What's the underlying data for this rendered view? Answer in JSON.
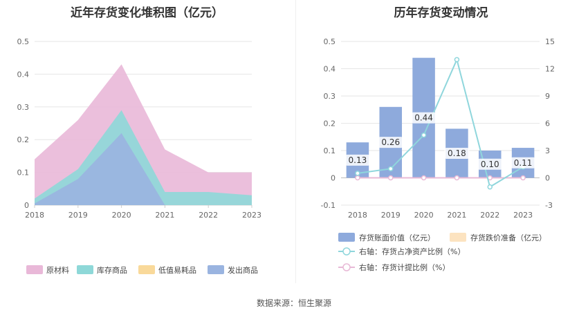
{
  "left_chart": {
    "title": "近年存货变化堆积图（亿元）",
    "chart_data": {
      "type": "area",
      "x": [
        "2018",
        "2019",
        "2020",
        "2021",
        "2022",
        "2023"
      ],
      "ylim": [
        0,
        0.5
      ],
      "yticks": [
        "0",
        "0.1",
        "0.2",
        "0.3",
        "0.4",
        "0.5"
      ],
      "series": [
        {
          "name": "原材料",
          "values": [
            0.14,
            0.26,
            0.43,
            0.17,
            0.1,
            0.1
          ],
          "color": "#E9B8D8"
        },
        {
          "name": "库存商品",
          "values": [
            0.02,
            0.11,
            0.29,
            0.04,
            0.04,
            0.03
          ],
          "color": "#8ED8D8"
        },
        {
          "name": "低值易耗品",
          "values": [
            0,
            0,
            0,
            0,
            0,
            0
          ],
          "color": "#F9D99A"
        },
        {
          "name": "发出商品",
          "values": [
            0.005,
            0.08,
            0.22,
            0.0,
            0.0,
            0.0
          ],
          "color": "#9AB4E0"
        }
      ],
      "legend": "bottom",
      "grid": true
    }
  },
  "right_chart": {
    "title": "历年存货变动情况",
    "chart_data": {
      "type": "bar",
      "categories": [
        "2018",
        "2019",
        "2020",
        "2021",
        "2022",
        "2023"
      ],
      "ylim": [
        -0.1,
        0.5
      ],
      "yticks": [
        "-0.1",
        "0",
        "0.1",
        "0.2",
        "0.3",
        "0.4",
        "0.5"
      ],
      "y2lim": [
        -3,
        15
      ],
      "y2ticks": [
        "-3",
        "0",
        "3",
        "6",
        "9",
        "12",
        "15"
      ],
      "series": [
        {
          "name": "存货账面价值（亿元）",
          "type": "bar",
          "values": [
            0.13,
            0.26,
            0.44,
            0.18,
            0.1,
            0.11
          ],
          "labels": [
            "0.13",
            "0.26",
            "0.44",
            "0.18",
            "0.10",
            "0.11"
          ],
          "color": "#8EAADC"
        },
        {
          "name": "存货跌价准备（亿元）",
          "type": "bar",
          "values": [
            0,
            0,
            0,
            0,
            0,
            0
          ],
          "color": "#FCE3C0"
        },
        {
          "name": "右轴：存货占净资产比例（%）",
          "type": "line",
          "axis": "right",
          "values": [
            0.5,
            1.0,
            4.7,
            13.0,
            -1.0,
            1.2
          ],
          "color": "#8FD6DC"
        },
        {
          "name": "右轴：存货计提比例（%）",
          "type": "line",
          "axis": "right",
          "values": [
            0,
            0,
            0,
            0,
            0,
            0
          ],
          "color": "#E8B9D6"
        }
      ],
      "legend": "bottom",
      "grid": true
    }
  },
  "footer": {
    "source": "数据来源：恒生聚源"
  }
}
